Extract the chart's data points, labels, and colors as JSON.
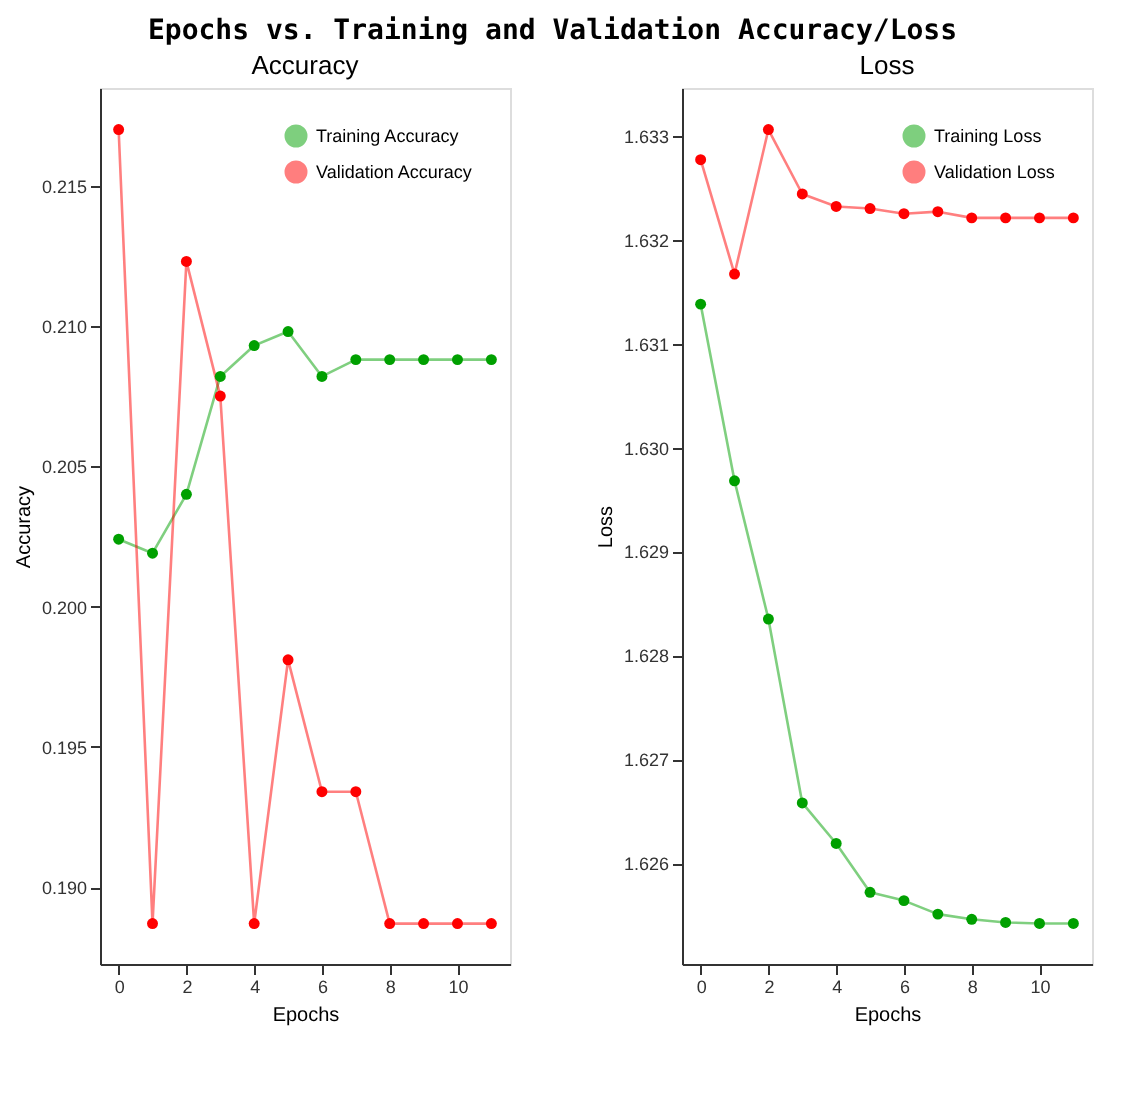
{
  "chart_data": [
    {
      "type": "line",
      "title": "Accuracy",
      "annotations": [
        "Epochs vs. Training and Validation Accuracy/Loss"
      ],
      "xlabel": "Epochs",
      "ylabel": "Accuracy",
      "x": [
        0,
        1,
        2,
        3,
        4,
        5,
        6,
        7,
        8,
        9,
        10,
        11
      ],
      "xlim": [
        -0.55,
        11.55
      ],
      "xticks": [
        0,
        2,
        4,
        6,
        8,
        10
      ],
      "ylim": [
        0.18726,
        0.21848
      ],
      "yticks": [
        {
          "value": 0.19,
          "label": "0.190"
        },
        0.195,
        {
          "value": 0.2,
          "label": "0.200"
        },
        0.205,
        {
          "value": 0.21,
          "label": "0.210"
        },
        0.215
      ],
      "grid": false,
      "legend": "top right",
      "marker": "circle",
      "line_style": "solid",
      "series": [
        {
          "name": "Training Accuracy",
          "color": "#00a000",
          "values": [
            0.2024,
            0.2019,
            0.204,
            0.2082,
            0.2093,
            0.2098,
            0.2082,
            0.2088,
            0.2088,
            0.2088,
            0.2088,
            0.2088
          ]
        },
        {
          "name": "Validation Accuracy",
          "color": "#ff0000",
          "values": [
            0.217,
            0.1887,
            0.2123,
            0.2075,
            0.1887,
            0.1981,
            0.1934,
            0.1934,
            0.1887,
            0.1887,
            0.1887,
            0.1887
          ]
        }
      ]
    },
    {
      "type": "line",
      "title": "Loss",
      "xlabel": "Epochs",
      "ylabel": "Loss",
      "x": [
        0,
        1,
        2,
        3,
        4,
        5,
        6,
        7,
        8,
        9,
        10,
        11
      ],
      "xlim": [
        -0.55,
        11.55
      ],
      "xticks": [
        0,
        2,
        4,
        6,
        8,
        10
      ],
      "ylim": [
        1.62503,
        1.63346
      ],
      "yticks": [
        1.626,
        1.627,
        1.628,
        1.629,
        {
          "value": 1.63,
          "label": "1.630"
        },
        1.631,
        1.632,
        1.633
      ],
      "grid": false,
      "legend": "top right",
      "marker": "circle",
      "line_style": "solid",
      "series": [
        {
          "name": "Training Loss",
          "color": "#00a000",
          "values": [
            1.63138,
            1.62968,
            1.62835,
            1.62658,
            1.62619,
            1.62572,
            1.62564,
            1.62551,
            1.62546,
            1.62543,
            1.62542,
            1.62542
          ]
        },
        {
          "name": "Validation Loss",
          "color": "#ff0000",
          "values": [
            1.63277,
            1.63167,
            1.63306,
            1.63244,
            1.63232,
            1.6323,
            1.63225,
            1.63227,
            1.63221,
            1.63221,
            1.63221,
            1.63221
          ]
        }
      ]
    }
  ]
}
